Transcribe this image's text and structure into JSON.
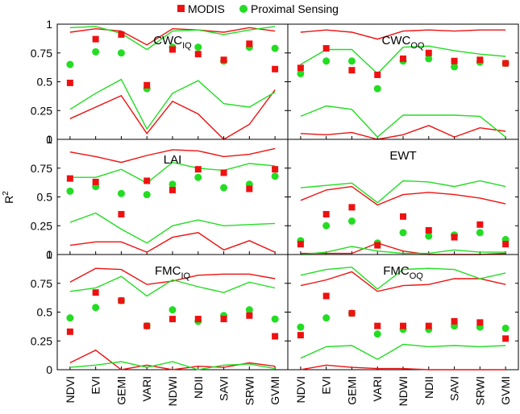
{
  "legend": {
    "items": [
      {
        "label": "MODIS",
        "marker": "square",
        "color": "#ee1111"
      },
      {
        "label": "Proximal Sensing",
        "marker": "circle",
        "color": "#22dd22"
      }
    ],
    "placement": "top-center"
  },
  "colors": {
    "modis": "#ee1111",
    "proximal": "#22dd22"
  },
  "chart_data": {
    "type": "scatter",
    "layout": "3x2 panel grid",
    "ylabel_base": "R",
    "ylabel_sup": "2",
    "ylim": [
      0,
      1
    ],
    "yticks": [
      "0",
      "0.25",
      "0.5",
      "0.75",
      "1"
    ],
    "categories": [
      "NDVI",
      "EVI",
      "GEMI",
      "VARI",
      "NDWI",
      "NDII",
      "SAVI",
      "SRWI",
      "GVMI"
    ],
    "panels": [
      {
        "title": "CWC",
        "subscript": "IQ",
        "modis": [
          0.49,
          0.87,
          0.91,
          0.47,
          0.78,
          0.74,
          0.69,
          0.83,
          0.61
        ],
        "proximal": [
          0.65,
          0.76,
          0.75,
          0.44,
          0.8,
          0.8,
          0.68,
          0.8,
          0.79
        ],
        "modis_upper": [
          0.93,
          0.96,
          0.94,
          0.82,
          0.96,
          0.95,
          0.93,
          0.97,
          0.94
        ],
        "modis_lower": [
          0.18,
          0.28,
          0.38,
          0.05,
          0.33,
          0.22,
          0.0,
          0.13,
          0.43
        ],
        "proximal_upper": [
          0.97,
          0.98,
          0.92,
          0.78,
          0.94,
          0.95,
          0.91,
          0.95,
          0.98
        ],
        "proximal_lower": [
          0.26,
          0.4,
          0.52,
          0.09,
          0.4,
          0.51,
          0.31,
          0.28,
          0.41
        ]
      },
      {
        "title": "CWC",
        "subscript": "OQ",
        "modis": [
          0.62,
          0.79,
          0.6,
          0.56,
          0.7,
          0.75,
          0.68,
          0.69,
          0.66
        ],
        "proximal": [
          0.57,
          0.68,
          0.68,
          0.44,
          0.68,
          0.7,
          0.63,
          0.67,
          0.66
        ],
        "modis_upper": [
          0.93,
          0.95,
          0.93,
          0.87,
          0.94,
          0.95,
          0.94,
          0.95,
          0.95
        ],
        "modis_lower": [
          0.05,
          0.04,
          0.06,
          0.0,
          0.04,
          0.12,
          0.02,
          0.1,
          0.07
        ],
        "proximal_upper": [
          0.65,
          0.78,
          0.78,
          0.57,
          0.8,
          0.81,
          0.77,
          0.74,
          0.72
        ],
        "proximal_lower": [
          0.2,
          0.29,
          0.26,
          0.02,
          0.21,
          0.21,
          0.21,
          0.2,
          0.02
        ]
      },
      {
        "title": "LAI",
        "subscript": "",
        "modis": [
          0.66,
          0.63,
          0.35,
          0.64,
          0.56,
          0.74,
          0.71,
          0.57,
          0.74
        ],
        "proximal": [
          0.55,
          0.59,
          0.53,
          0.52,
          0.61,
          0.67,
          0.58,
          0.61,
          0.68
        ],
        "modis_upper": [
          0.89,
          0.85,
          0.8,
          0.86,
          0.91,
          0.9,
          0.85,
          0.87,
          0.92
        ],
        "modis_lower": [
          0.08,
          0.11,
          0.11,
          0.02,
          0.15,
          0.19,
          0.04,
          0.12,
          0.02
        ],
        "proximal_upper": [
          0.67,
          0.67,
          0.74,
          0.62,
          0.8,
          0.75,
          0.73,
          0.79,
          0.77
        ],
        "proximal_lower": [
          0.28,
          0.36,
          0.22,
          0.1,
          0.25,
          0.3,
          0.25,
          0.26,
          0.27
        ]
      },
      {
        "title": "EWT",
        "subscript": "",
        "modis": [
          0.09,
          0.35,
          0.41,
          0.08,
          0.33,
          0.21,
          0.15,
          0.26,
          0.09
        ],
        "proximal": [
          0.12,
          0.25,
          0.29,
          0.1,
          0.19,
          0.16,
          0.17,
          0.19,
          0.13
        ],
        "modis_upper": [
          0.47,
          0.56,
          0.59,
          0.43,
          0.52,
          0.54,
          0.52,
          0.49,
          0.44
        ],
        "modis_lower": [
          0.01,
          0.01,
          0.01,
          0.1,
          0.03,
          0.0,
          0.0,
          0.0,
          0.01
        ],
        "proximal_upper": [
          0.58,
          0.6,
          0.62,
          0.45,
          0.64,
          0.63,
          0.59,
          0.64,
          0.59
        ],
        "proximal_lower": [
          0.0,
          0.02,
          0.07,
          0.03,
          0.01,
          0.01,
          0.04,
          0.02,
          0.02
        ]
      },
      {
        "title": "FMC",
        "subscript": "IQ",
        "modis": [
          0.33,
          0.67,
          0.6,
          0.38,
          0.44,
          0.44,
          0.44,
          0.47,
          0.29
        ],
        "proximal": [
          0.45,
          0.54,
          0.6,
          0.38,
          0.52,
          0.42,
          0.47,
          0.52,
          0.44
        ],
        "modis_upper": [
          0.76,
          0.88,
          0.87,
          0.74,
          0.77,
          0.82,
          0.83,
          0.83,
          0.79
        ],
        "modis_lower": [
          0.06,
          0.17,
          0.0,
          0.04,
          0.0,
          0.03,
          0.02,
          0.06,
          0.03
        ],
        "proximal_upper": [
          0.68,
          0.71,
          0.81,
          0.64,
          0.78,
          0.72,
          0.67,
          0.76,
          0.71
        ],
        "proximal_lower": [
          0.02,
          0.04,
          0.07,
          0.02,
          0.07,
          0.0,
          0.04,
          0.05,
          0.01
        ]
      },
      {
        "title": "FMC",
        "subscript": "OQ",
        "modis": [
          0.3,
          0.64,
          0.49,
          0.38,
          0.38,
          0.38,
          0.42,
          0.41,
          0.27
        ],
        "proximal": [
          0.37,
          0.45,
          0.49,
          0.31,
          0.35,
          0.35,
          0.38,
          0.37,
          0.36
        ],
        "modis_upper": [
          0.73,
          0.78,
          0.85,
          0.68,
          0.73,
          0.74,
          0.79,
          0.79,
          0.74
        ],
        "modis_lower": [
          0.0,
          0.04,
          0.02,
          0.01,
          0.01,
          0.0,
          0.0,
          0.0,
          0.0
        ],
        "proximal_upper": [
          0.82,
          0.87,
          0.89,
          0.7,
          0.87,
          0.88,
          0.87,
          0.79,
          0.84
        ],
        "proximal_lower": [
          0.1,
          0.2,
          0.21,
          0.09,
          0.22,
          0.2,
          0.21,
          0.2,
          0.21
        ]
      }
    ]
  }
}
